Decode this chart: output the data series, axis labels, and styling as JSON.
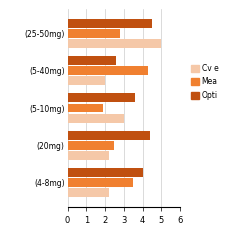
{
  "categories": [
    "(4-8mg)",
    "(20mg)",
    "(5-10mg)",
    "(5-40mg)",
    "(25-50mg)"
  ],
  "series": {
    "Cv e": [
      2.2,
      2.2,
      3.0,
      2.0,
      5.0
    ],
    "Mea": [
      3.5,
      2.5,
      1.9,
      4.3,
      2.8
    ],
    "Opti": [
      4.0,
      4.4,
      3.6,
      2.6,
      4.5
    ]
  },
  "colors": {
    "Cv e": "#f5c8a8",
    "Mea": "#f08030",
    "Opti": "#c05010"
  },
  "legend_labels": [
    "Cv e",
    "Mea",
    "Opti"
  ],
  "xlim": [
    0,
    6
  ],
  "xticks": [
    0,
    1,
    2,
    3,
    4,
    5,
    6
  ],
  "background_color": "#ffffff",
  "grid_color": "#cccccc",
  "bar_height": 0.24,
  "bar_spacing": 0.27
}
